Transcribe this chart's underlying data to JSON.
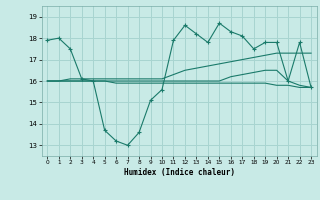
{
  "xlabel": "Humidex (Indice chaleur)",
  "bg_color": "#c8eae6",
  "grid_color": "#a8d4d0",
  "line_color": "#1a7a6a",
  "xlim": [
    -0.5,
    23.5
  ],
  "ylim": [
    12.5,
    19.5
  ],
  "yticks": [
    13,
    14,
    15,
    16,
    17,
    18,
    19
  ],
  "xticks": [
    0,
    1,
    2,
    3,
    4,
    5,
    6,
    7,
    8,
    9,
    10,
    11,
    12,
    13,
    14,
    15,
    16,
    17,
    18,
    19,
    20,
    21,
    22,
    23
  ],
  "series": [
    {
      "x": [
        0,
        1,
        2,
        3,
        4,
        5,
        6,
        7,
        8,
        9,
        10,
        11,
        12,
        13,
        14,
        15,
        16,
        17,
        18,
        19,
        20,
        21,
        22,
        23
      ],
      "y": [
        17.9,
        18.0,
        17.5,
        16.1,
        16.0,
        13.7,
        13.2,
        13.0,
        13.6,
        15.1,
        15.6,
        17.9,
        18.6,
        18.2,
        17.8,
        18.7,
        18.3,
        18.1,
        17.5,
        17.8,
        17.8,
        16.0,
        17.8,
        15.7
      ],
      "marker": "+"
    },
    {
      "x": [
        0,
        1,
        2,
        3,
        4,
        5,
        6,
        7,
        8,
        9,
        10,
        11,
        12,
        13,
        14,
        15,
        16,
        17,
        18,
        19,
        20,
        21,
        22,
        23
      ],
      "y": [
        16.0,
        16.0,
        16.0,
        16.0,
        16.0,
        16.0,
        16.0,
        16.0,
        16.0,
        16.0,
        16.0,
        16.0,
        16.0,
        16.0,
        16.0,
        16.0,
        16.2,
        16.3,
        16.4,
        16.5,
        16.5,
        16.0,
        15.8,
        15.7
      ],
      "marker": null
    },
    {
      "x": [
        0,
        1,
        2,
        3,
        4,
        5,
        6,
        7,
        8,
        9,
        10,
        11,
        12,
        13,
        14,
        15,
        16,
        17,
        18,
        19,
        20,
        21,
        22,
        23
      ],
      "y": [
        16.0,
        16.0,
        16.1,
        16.1,
        16.1,
        16.1,
        16.1,
        16.1,
        16.1,
        16.1,
        16.1,
        16.3,
        16.5,
        16.6,
        16.7,
        16.8,
        16.9,
        17.0,
        17.1,
        17.2,
        17.3,
        17.3,
        17.3,
        17.3
      ],
      "marker": null
    },
    {
      "x": [
        0,
        1,
        2,
        3,
        4,
        5,
        6,
        7,
        8,
        9,
        10,
        11,
        12,
        13,
        14,
        15,
        16,
        17,
        18,
        19,
        20,
        21,
        22,
        23
      ],
      "y": [
        16.0,
        16.0,
        16.0,
        16.0,
        16.0,
        16.0,
        15.9,
        15.9,
        15.9,
        15.9,
        15.9,
        15.9,
        15.9,
        15.9,
        15.9,
        15.9,
        15.9,
        15.9,
        15.9,
        15.9,
        15.8,
        15.8,
        15.7,
        15.7
      ],
      "marker": null
    }
  ]
}
